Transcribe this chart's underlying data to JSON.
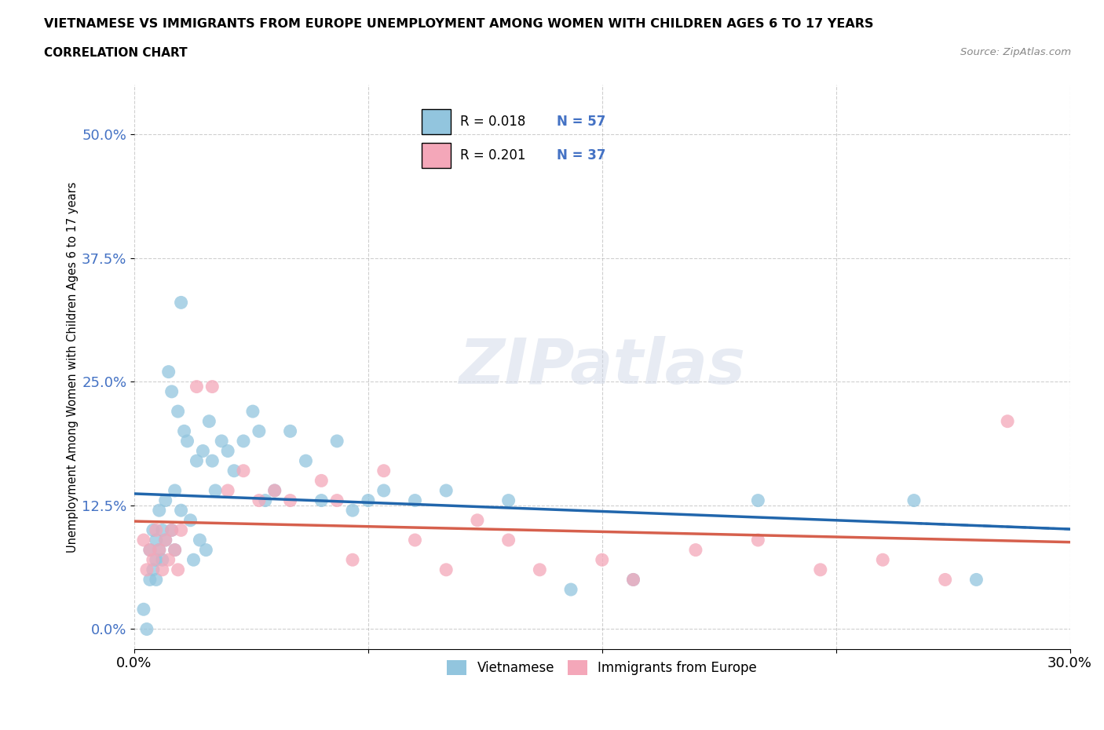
{
  "title": "VIETNAMESE VS IMMIGRANTS FROM EUROPE UNEMPLOYMENT AMONG WOMEN WITH CHILDREN AGES 6 TO 17 YEARS",
  "subtitle": "CORRELATION CHART",
  "source": "Source: ZipAtlas.com",
  "ylabel": "Unemployment Among Women with Children Ages 6 to 17 years",
  "xlim": [
    0.0,
    0.3
  ],
  "ylim": [
    -0.02,
    0.55
  ],
  "yticks": [
    0.0,
    0.125,
    0.25,
    0.375,
    0.5
  ],
  "ytick_labels": [
    "0.0%",
    "12.5%",
    "25.0%",
    "37.5%",
    "50.0%"
  ],
  "xticks": [
    0.0,
    0.075,
    0.15,
    0.225,
    0.3
  ],
  "xtick_labels": [
    "0.0%",
    "",
    "",
    "",
    "30.0%"
  ],
  "blue_color": "#92c5de",
  "pink_color": "#f4a7b9",
  "blue_line_color": "#2166ac",
  "pink_line_color": "#d6604d",
  "grid_color": "#b0b0b0",
  "watermark": "ZIPatlas",
  "legend_R1": "R = 0.018",
  "legend_N1": "N = 57",
  "legend_R2": "R = 0.201",
  "legend_N2": "N = 37",
  "blue_scatter_x": [
    0.003,
    0.004,
    0.005,
    0.005,
    0.006,
    0.006,
    0.007,
    0.007,
    0.007,
    0.008,
    0.008,
    0.009,
    0.009,
    0.01,
    0.01,
    0.011,
    0.012,
    0.012,
    0.013,
    0.013,
    0.014,
    0.015,
    0.015,
    0.016,
    0.017,
    0.018,
    0.019,
    0.02,
    0.021,
    0.022,
    0.023,
    0.024,
    0.025,
    0.026,
    0.028,
    0.03,
    0.032,
    0.035,
    0.038,
    0.04,
    0.042,
    0.045,
    0.05,
    0.055,
    0.06,
    0.065,
    0.07,
    0.075,
    0.08,
    0.09,
    0.1,
    0.12,
    0.14,
    0.16,
    0.2,
    0.25,
    0.27
  ],
  "blue_scatter_y": [
    0.02,
    0.0,
    0.08,
    0.05,
    0.1,
    0.06,
    0.09,
    0.07,
    0.05,
    0.12,
    0.08,
    0.1,
    0.07,
    0.13,
    0.09,
    0.26,
    0.24,
    0.1,
    0.14,
    0.08,
    0.22,
    0.33,
    0.12,
    0.2,
    0.19,
    0.11,
    0.07,
    0.17,
    0.09,
    0.18,
    0.08,
    0.21,
    0.17,
    0.14,
    0.19,
    0.18,
    0.16,
    0.19,
    0.22,
    0.2,
    0.13,
    0.14,
    0.2,
    0.17,
    0.13,
    0.19,
    0.12,
    0.13,
    0.14,
    0.13,
    0.14,
    0.13,
    0.04,
    0.05,
    0.13,
    0.13,
    0.05
  ],
  "pink_scatter_x": [
    0.003,
    0.004,
    0.005,
    0.006,
    0.007,
    0.008,
    0.009,
    0.01,
    0.011,
    0.012,
    0.013,
    0.014,
    0.015,
    0.02,
    0.025,
    0.03,
    0.035,
    0.04,
    0.045,
    0.05,
    0.06,
    0.065,
    0.07,
    0.08,
    0.09,
    0.1,
    0.11,
    0.12,
    0.13,
    0.15,
    0.16,
    0.18,
    0.2,
    0.22,
    0.24,
    0.26,
    0.28
  ],
  "pink_scatter_y": [
    0.09,
    0.06,
    0.08,
    0.07,
    0.1,
    0.08,
    0.06,
    0.09,
    0.07,
    0.1,
    0.08,
    0.06,
    0.1,
    0.245,
    0.245,
    0.14,
    0.16,
    0.13,
    0.14,
    0.13,
    0.15,
    0.13,
    0.07,
    0.16,
    0.09,
    0.06,
    0.11,
    0.09,
    0.06,
    0.07,
    0.05,
    0.08,
    0.09,
    0.06,
    0.07,
    0.05,
    0.21
  ]
}
